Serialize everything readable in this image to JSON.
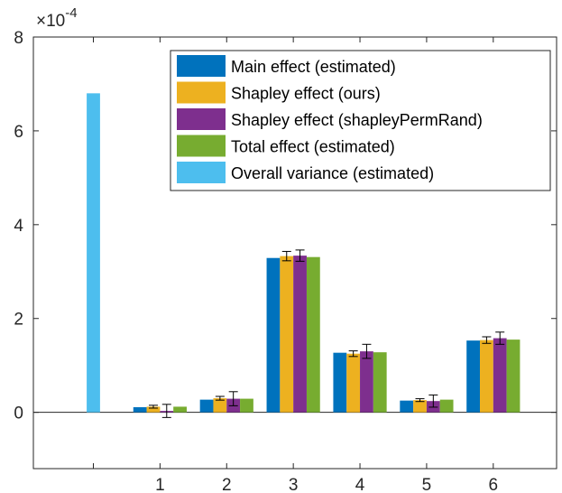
{
  "chart_data": {
    "type": "bar",
    "multiplier_base": "×10",
    "multiplier_exponent": "-4",
    "categories": [
      "",
      "1",
      "2",
      "3",
      "4",
      "5",
      "6"
    ],
    "ylim": [
      -1.2,
      8
    ],
    "yticks": [
      0,
      2,
      4,
      6,
      8
    ],
    "grid": false,
    "legend_position": "top-right",
    "series": [
      {
        "name": "Main effect (estimated)",
        "color": "#0072BD",
        "values": [
          null,
          0.11,
          0.27,
          3.29,
          1.27,
          0.25,
          1.53
        ],
        "errors": null
      },
      {
        "name": "Shapley effect (ours)",
        "color": "#EDB120",
        "values": [
          null,
          0.12,
          0.3,
          3.33,
          1.25,
          0.26,
          1.54
        ],
        "errors": [
          null,
          0.03,
          0.04,
          0.1,
          0.06,
          0.03,
          0.07
        ]
      },
      {
        "name": "Shapley effect (shapleyPermRand)",
        "color": "#7E2F8E",
        "values": [
          null,
          0.03,
          0.29,
          3.34,
          1.3,
          0.24,
          1.58
        ],
        "errors": [
          null,
          0.14,
          0.15,
          0.12,
          0.15,
          0.13,
          0.13
        ]
      },
      {
        "name": "Total effect (estimated)",
        "color": "#77AC30",
        "values": [
          null,
          0.12,
          0.29,
          3.31,
          1.28,
          0.27,
          1.55
        ],
        "errors": null
      },
      {
        "name": "Overall variance (estimated)",
        "color": "#4DBEEE",
        "values": [
          6.8,
          null,
          null,
          null,
          null,
          null,
          null
        ],
        "errors": null
      }
    ]
  }
}
